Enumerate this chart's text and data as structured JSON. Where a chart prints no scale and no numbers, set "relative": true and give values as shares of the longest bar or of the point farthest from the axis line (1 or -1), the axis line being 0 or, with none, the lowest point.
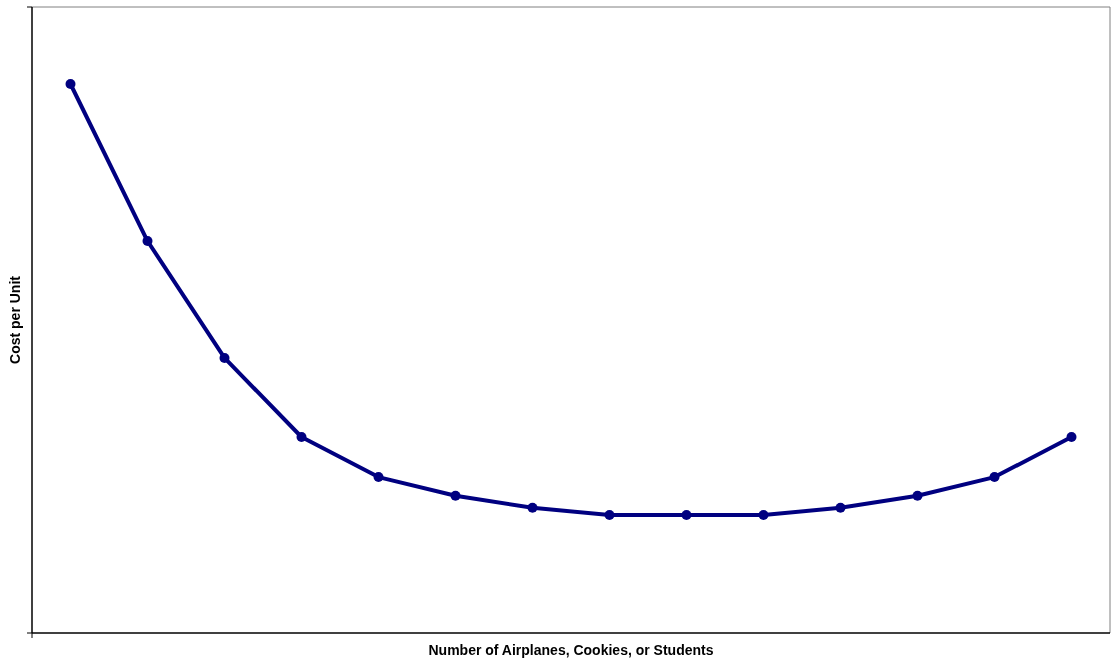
{
  "chart_data": {
    "type": "line",
    "xlabel": "Number of Airplanes, Cookies, or Students",
    "ylabel": "Cost per Unit",
    "relative": true,
    "marker": "circle",
    "line_style": "solid",
    "categories": [
      null,
      null,
      null,
      null,
      null,
      null,
      null,
      null,
      null,
      null,
      null,
      null,
      null,
      null
    ],
    "series": [
      {
        "color": "#000080",
        "values": [
          1,
          0.714,
          0.501,
          0.357,
          0.284,
          0.25,
          0.228,
          0.215,
          0.215,
          0.215,
          0.228,
          0.25,
          0.284,
          0.357
        ]
      }
    ]
  }
}
